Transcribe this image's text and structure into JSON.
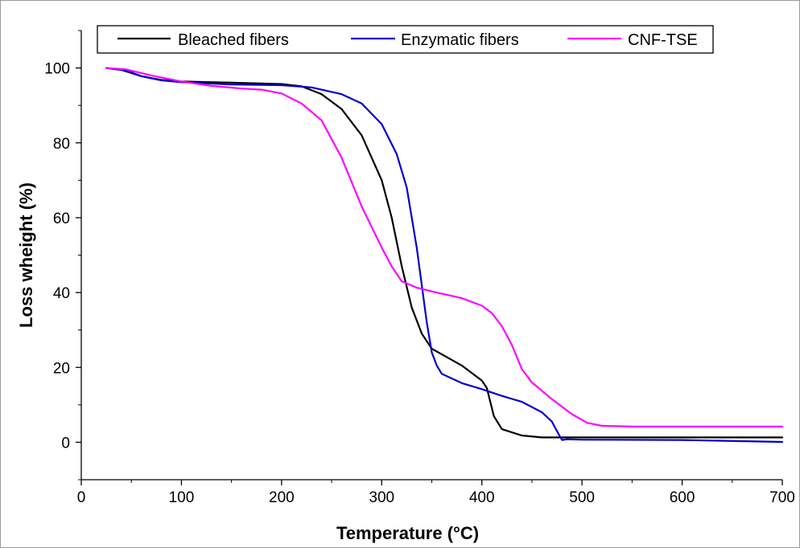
{
  "chart_data": {
    "type": "line",
    "title": "",
    "xlabel": "Temperature (°C)",
    "ylabel": "Loss wheight (%)",
    "xlim": [
      0,
      700
    ],
    "ylim": [
      -10,
      110
    ],
    "xticks": [
      0,
      100,
      200,
      300,
      400,
      500,
      600,
      700
    ],
    "yticks": [
      0,
      20,
      40,
      60,
      80,
      100
    ],
    "grid": false,
    "legend_position": "top",
    "series": [
      {
        "name": "Bleached fibers",
        "color": "#000000",
        "points": [
          [
            25,
            100
          ],
          [
            40,
            99.5
          ],
          [
            60,
            97.8
          ],
          [
            80,
            96.8
          ],
          [
            100,
            96.4
          ],
          [
            150,
            96.1
          ],
          [
            200,
            95.7
          ],
          [
            220,
            95.1
          ],
          [
            240,
            93
          ],
          [
            260,
            89
          ],
          [
            280,
            82
          ],
          [
            300,
            70
          ],
          [
            310,
            60
          ],
          [
            320,
            47
          ],
          [
            330,
            36
          ],
          [
            340,
            29
          ],
          [
            350,
            25
          ],
          [
            360,
            23.5
          ],
          [
            380,
            20.5
          ],
          [
            400,
            16.5
          ],
          [
            405,
            14.5
          ],
          [
            412,
            7
          ],
          [
            420,
            3.5
          ],
          [
            440,
            1.8
          ],
          [
            460,
            1.3
          ],
          [
            500,
            1.3
          ],
          [
            700,
            1.3
          ]
        ]
      },
      {
        "name": "Enzymatic fibers",
        "color": "#0000cc",
        "points": [
          [
            25,
            100
          ],
          [
            45,
            99.3
          ],
          [
            60,
            97.8
          ],
          [
            80,
            96.7
          ],
          [
            100,
            96.2
          ],
          [
            150,
            95.6
          ],
          [
            200,
            95.4
          ],
          [
            230,
            94.8
          ],
          [
            260,
            93
          ],
          [
            280,
            90.5
          ],
          [
            300,
            85
          ],
          [
            315,
            77
          ],
          [
            325,
            68
          ],
          [
            335,
            52
          ],
          [
            345,
            32
          ],
          [
            350,
            24
          ],
          [
            355,
            20.5
          ],
          [
            360,
            18.3
          ],
          [
            380,
            15.8
          ],
          [
            400,
            14.2
          ],
          [
            420,
            12.4
          ],
          [
            440,
            10.8
          ],
          [
            460,
            8
          ],
          [
            470,
            5.5
          ],
          [
            477,
            2
          ],
          [
            480,
            0.6
          ],
          [
            485,
            0.8
          ],
          [
            500,
            0.7
          ],
          [
            600,
            0.6
          ],
          [
            700,
            0.1
          ]
        ]
      },
      {
        "name": "CNF-TSE",
        "color": "#ff00ff",
        "points": [
          [
            25,
            100
          ],
          [
            45,
            99.6
          ],
          [
            70,
            98
          ],
          [
            100,
            96.4
          ],
          [
            130,
            95.2
          ],
          [
            160,
            94.5
          ],
          [
            180,
            94.2
          ],
          [
            200,
            93.2
          ],
          [
            220,
            90.5
          ],
          [
            240,
            86
          ],
          [
            260,
            76
          ],
          [
            280,
            63
          ],
          [
            300,
            52
          ],
          [
            310,
            47
          ],
          [
            320,
            43
          ],
          [
            335,
            41.3
          ],
          [
            350,
            40.3
          ],
          [
            380,
            38.5
          ],
          [
            400,
            36.5
          ],
          [
            410,
            34.5
          ],
          [
            420,
            31
          ],
          [
            430,
            26
          ],
          [
            440,
            19.5
          ],
          [
            450,
            16
          ],
          [
            470,
            11.5
          ],
          [
            490,
            7.5
          ],
          [
            505,
            5.2
          ],
          [
            520,
            4.4
          ],
          [
            550,
            4.2
          ],
          [
            600,
            4.2
          ],
          [
            700,
            4.2
          ]
        ]
      }
    ]
  }
}
